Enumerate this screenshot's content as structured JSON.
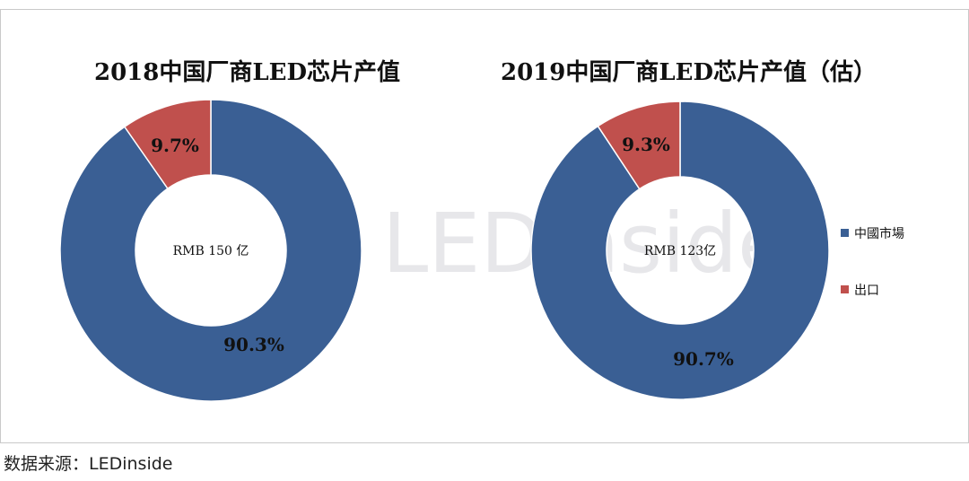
{
  "chart_data": [
    {
      "type": "pie",
      "title": "2018中国厂商LED芯片产值",
      "center_label": "RMB 150 亿",
      "slices": [
        {
          "label": "中國市場",
          "value": 90.3,
          "value_label": "90.3%",
          "color": "#3A5F94"
        },
        {
          "label": "出口",
          "value": 9.7,
          "value_label": "9.7%",
          "color": "#C0504D"
        }
      ]
    },
    {
      "type": "pie",
      "title": "2019中国厂商LED芯片产值（估）",
      "center_label": "RMB 123亿",
      "slices": [
        {
          "label": "中國市場",
          "value": 90.7,
          "value_label": "90.7%",
          "color": "#3A5F94"
        },
        {
          "label": "出口",
          "value": 9.3,
          "value_label": "9.3%",
          "color": "#C0504D"
        }
      ]
    }
  ],
  "legend": [
    {
      "label": "中國市場",
      "color": "#3A5F94"
    },
    {
      "label": "出口",
      "color": "#C0504D"
    }
  ],
  "watermark": "LEDinside",
  "source": "数据来源：LEDinside"
}
